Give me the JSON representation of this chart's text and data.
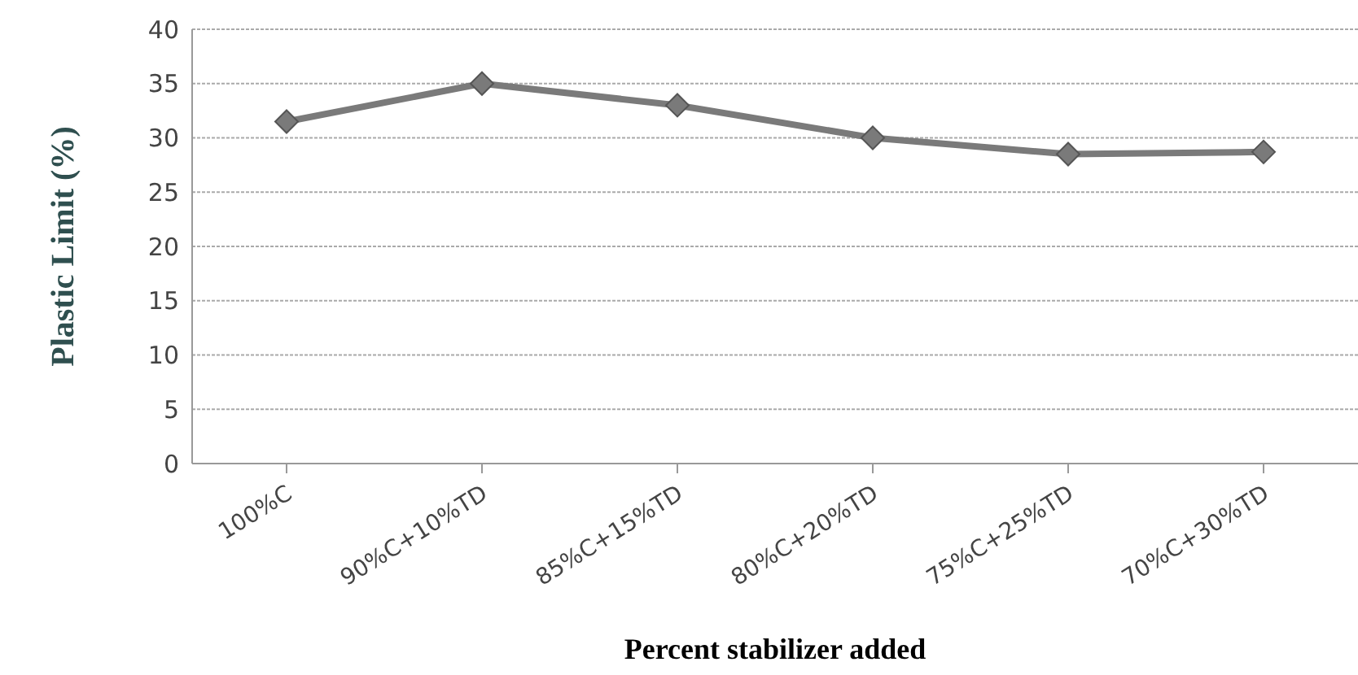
{
  "chart_data": {
    "type": "line",
    "xlabel": "Percent stabilizer added",
    "ylabel": "Plastic Limit (%)",
    "categories": [
      "100%C",
      "90%C+10%TD",
      "85%C+15%TD",
      "80%C+20%TD",
      "75%C+25%TD",
      "70%C+30%TD"
    ],
    "series": [
      {
        "color": "#7a7a7a",
        "values": [
          31.5,
          35,
          33,
          30,
          28.5,
          28.7
        ]
      }
    ],
    "ylim": [
      0,
      40
    ],
    "yticks": [
      0,
      5,
      10,
      15,
      20,
      25,
      30,
      35,
      40
    ],
    "grid": "y",
    "marker": "diamond",
    "line_style": "solid",
    "legend": false
  }
}
